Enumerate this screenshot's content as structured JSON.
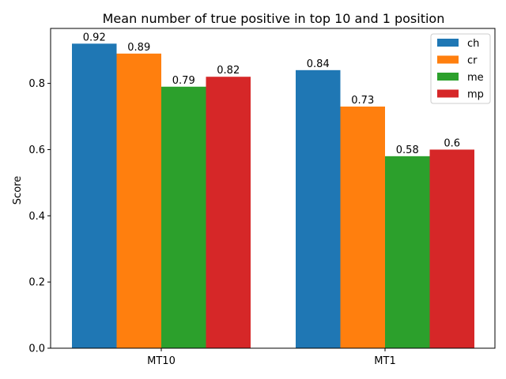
{
  "chart_data": {
    "type": "bar",
    "title": "Mean number of true positive in top 10 and 1 position",
    "xlabel": "",
    "ylabel": "Score",
    "categories": [
      "MT10",
      "MT1"
    ],
    "series": [
      {
        "name": "ch",
        "values": [
          0.92,
          0.84
        ],
        "labels": [
          "0.92",
          "0.84"
        ],
        "color": "#1f77b4"
      },
      {
        "name": "cr",
        "values": [
          0.89,
          0.73
        ],
        "labels": [
          "0.89",
          "0.73"
        ],
        "color": "#ff7f0e"
      },
      {
        "name": "me",
        "values": [
          0.79,
          0.58
        ],
        "labels": [
          "0.79",
          "0.58"
        ],
        "color": "#2ca02c"
      },
      {
        "name": "mp",
        "values": [
          0.82,
          0.6
        ],
        "labels": [
          "0.82",
          "0.6"
        ],
        "color": "#d62728"
      }
    ],
    "ylim": [
      0,
      0.966
    ],
    "yticks": [
      "0.0",
      "0.2",
      "0.4",
      "0.6",
      "0.8"
    ],
    "grid": false,
    "legend": "top-right"
  }
}
